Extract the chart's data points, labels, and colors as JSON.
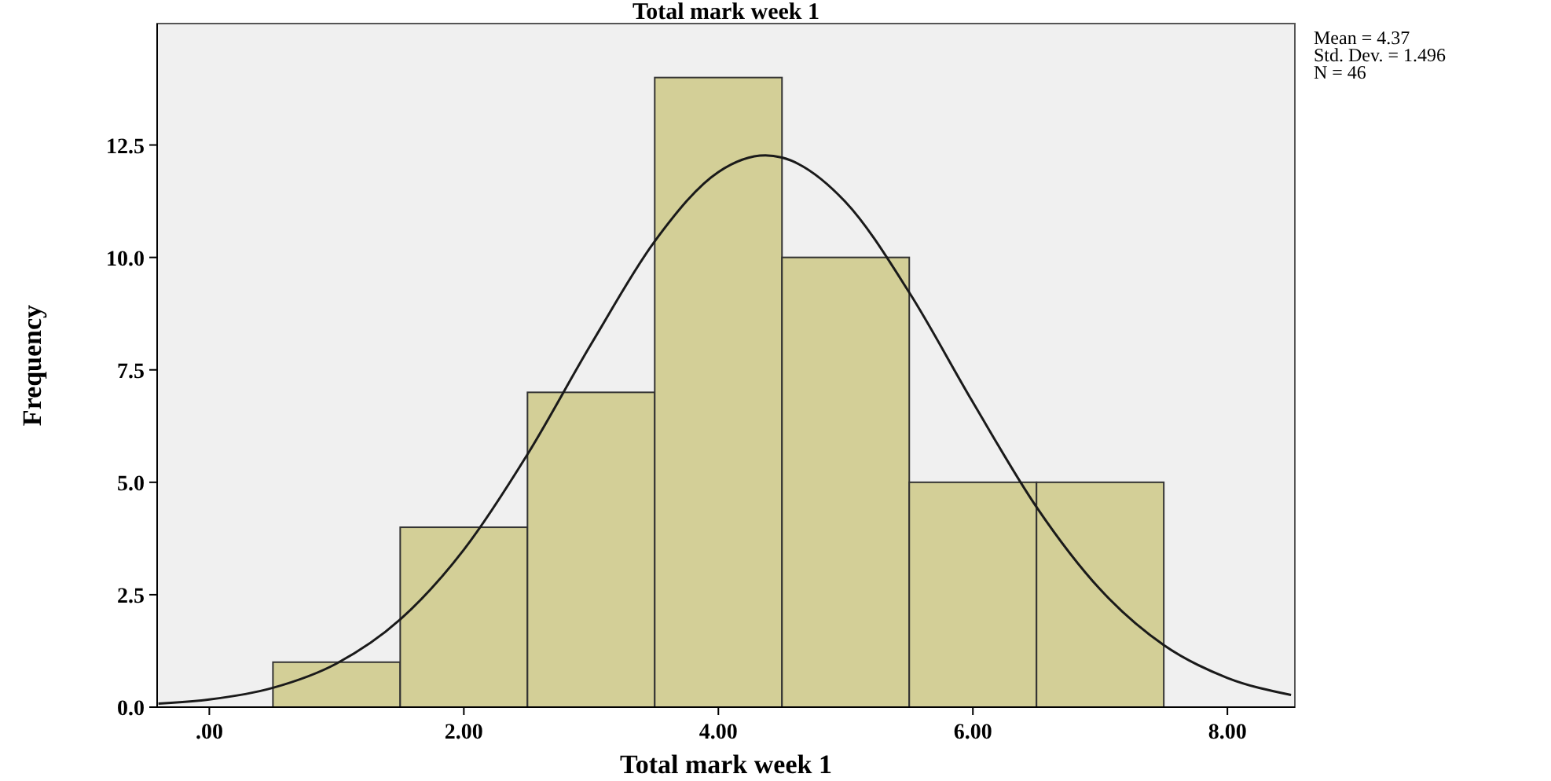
{
  "chart_data": {
    "type": "histogram",
    "title": "Total mark week 1",
    "xlabel": "Total mark week 1",
    "ylabel": "Frequency",
    "bins": [
      0.5,
      1.5,
      2.5,
      3.5,
      4.5,
      5.5,
      6.5,
      7.5
    ],
    "values": [
      1,
      4,
      7,
      14,
      10,
      5,
      5
    ],
    "color": "#d3cf97",
    "series": [
      {
        "type": "line",
        "color": "#1a1a1a",
        "x": [
          -0.4,
          0,
          0.5,
          1,
          1.5,
          2,
          2.5,
          3,
          3.5,
          4,
          4.37,
          4.5,
          5,
          5.5,
          6,
          6.5,
          7,
          7.5,
          8,
          8.5
        ],
        "values": [
          0.08,
          0.17,
          0.43,
          0.97,
          1.95,
          3.5,
          5.62,
          8.07,
          10.36,
          11.9,
          12.27,
          12.22,
          11.23,
          9.22,
          6.78,
          4.45,
          2.62,
          1.38,
          0.65,
          0.27
        ]
      }
    ],
    "xlim": [
      -0.41,
      8.53
    ],
    "ylim": [
      0,
      15.2
    ],
    "xticks": [
      {
        "value": 0,
        "label": ".00"
      },
      {
        "value": 2,
        "label": "2.00"
      },
      {
        "value": 4,
        "label": "4.00"
      },
      {
        "value": 6,
        "label": "6.00"
      },
      {
        "value": 8,
        "label": "8.00"
      }
    ],
    "yticks": [
      {
        "value": 0,
        "label": "0.0"
      },
      {
        "value": 2.5,
        "label": "2.5"
      },
      {
        "value": 5,
        "label": "5.0"
      },
      {
        "value": 7.5,
        "label": "7.5"
      },
      {
        "value": 10,
        "label": "10.0"
      },
      {
        "value": 12.5,
        "label": "12.5"
      }
    ],
    "annotations": [
      "Mean = 4.37",
      "Std. Dev. = 1.496",
      "N = 46"
    ],
    "grid": false
  }
}
